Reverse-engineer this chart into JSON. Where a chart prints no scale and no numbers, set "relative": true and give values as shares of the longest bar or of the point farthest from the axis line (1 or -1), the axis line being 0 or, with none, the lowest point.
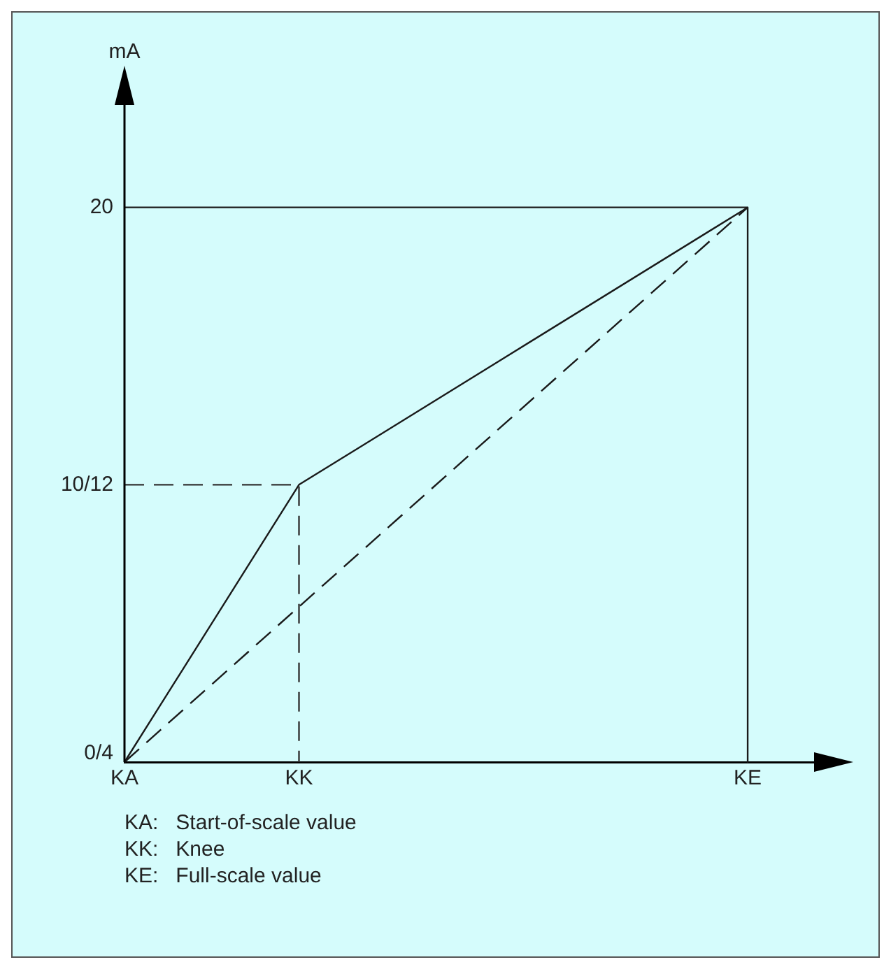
{
  "chart_data": {
    "type": "line",
    "relative": true,
    "categories": [
      "KA",
      null,
      null,
      null,
      null,
      null,
      null,
      "KK",
      null,
      null,
      null,
      null,
      null,
      null,
      null,
      null,
      null,
      null,
      null,
      null,
      null,
      null,
      null,
      null,
      null,
      "KE",
      null,
      null,
      null
    ],
    "marker": "none",
    "legend": false,
    "series": [
      {
        "color": "#1a1a1a",
        "x": [
          "KA",
          "KK",
          "KE"
        ],
        "values": [
          0,
          0.5,
          1
        ],
        "line_style": "solid"
      },
      {
        "color": "#1a1a1a",
        "x": [
          "KA",
          "KE"
        ],
        "values": [
          0,
          1
        ],
        "line_style": "dashed"
      },
      {
        "color": "#333333",
        "x": [
          "KA",
          "KK",
          "KK"
        ],
        "values": [
          0.5,
          0.5,
          0
        ],
        "line_style": "dashed"
      },
      {
        "color": "#1a1a1a",
        "x": [
          "KA",
          "KE",
          "KE"
        ],
        "values": [
          1,
          1,
          0
        ],
        "line_style": "solid"
      }
    ],
    "annotations": [
      "mA",
      {
        "text": "0/4",
        "x": "KA",
        "y": 0
      },
      {
        "text": "10/12",
        "x": "KA",
        "y": 0.5
      },
      {
        "text": "20",
        "x": "KA",
        "y": 1
      },
      "KA:   Start-of-scale value",
      "KK:   Knee",
      "KE:   Full-scale value"
    ]
  }
}
